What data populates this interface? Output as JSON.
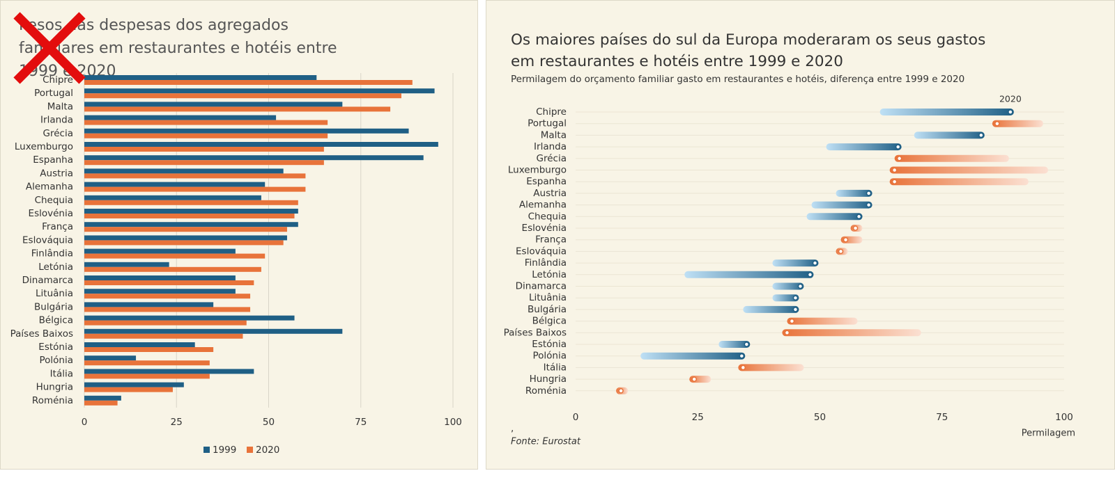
{
  "chart_data": [
    {
      "type": "grouped-bar",
      "title": "Pesos das despesas dos agregados familiares em restaurantes e hotéis entre 1999 e 2020",
      "categories": [
        "Chipre",
        "Portugal",
        "Malta",
        "Irlanda",
        "Grécia",
        "Luxemburgo",
        "Espanha",
        "Austria",
        "Alemanha",
        "Chequia",
        "Eslovénia",
        "França",
        "Eslováquia",
        "Finlândia",
        "Letónia",
        "Dinamarca",
        "Lituânia",
        "Bulgária",
        "Bélgica",
        "Países Baixos",
        "Estónia",
        "Polónia",
        "Itália",
        "Hungria",
        "Roménia"
      ],
      "series": [
        {
          "name": "1999",
          "color": "#1f5f85",
          "values": [
            63,
            95,
            70,
            52,
            88,
            96,
            92,
            54,
            49,
            48,
            58,
            58,
            55,
            41,
            23,
            41,
            41,
            35,
            57,
            70,
            30,
            14,
            46,
            27,
            10
          ]
        },
        {
          "name": "2020",
          "color": "#e8733a",
          "values": [
            89,
            86,
            83,
            66,
            66,
            65,
            65,
            60,
            60,
            58,
            57,
            55,
            54,
            49,
            48,
            46,
            45,
            45,
            44,
            43,
            35,
            34,
            34,
            24,
            9
          ]
        }
      ],
      "xlim": [
        0,
        100
      ],
      "xticks": [
        0,
        25,
        50,
        75,
        100
      ],
      "grid": true,
      "legend": "bottom"
    },
    {
      "type": "dumbbell",
      "title": "Os maiores países do sul da Europa moderaram os seus gastos em restaurantes e hotéis entre 1999 e 2020",
      "subtitle": "Permilagem do orçamento familiar gasto em restaurantes e hotéis, diferença entre 1999 e 2020",
      "categories": [
        "Chipre",
        "Portugal",
        "Malta",
        "Irlanda",
        "Grécia",
        "Luxemburgo",
        "Espanha",
        "Austria",
        "Alemanha",
        "Chequia",
        "Eslovénia",
        "França",
        "Eslováquia",
        "Finlândia",
        "Letónia",
        "Dinamarca",
        "Lituânia",
        "Bulgária",
        "Bélgica",
        "Países Baixos",
        "Estónia",
        "Polónia",
        "Itália",
        "Hungria",
        "Roménia"
      ],
      "series": [
        {
          "values": [
            63,
            95,
            70,
            52,
            88,
            96,
            92,
            54,
            49,
            48,
            58,
            58,
            55,
            41,
            23,
            41,
            41,
            35,
            57,
            70,
            30,
            14,
            46,
            27,
            10
          ]
        },
        {
          "name": "2020",
          "values": [
            89,
            86,
            83,
            66,
            66,
            65,
            65,
            60,
            60,
            58,
            57,
            55,
            54,
            49,
            48,
            46,
            45,
            45,
            44,
            43,
            35,
            34,
            34,
            24,
            9
          ]
        }
      ],
      "increase_color": "#1f5f85",
      "decrease_color": "#e8733a",
      "xlim": [
        0,
        100
      ],
      "xticks": [
        0,
        25,
        50,
        75,
        100
      ],
      "x_label": "Permilagem",
      "note": ",",
      "source": "Fonte: Eurostat",
      "grid": true
    }
  ]
}
